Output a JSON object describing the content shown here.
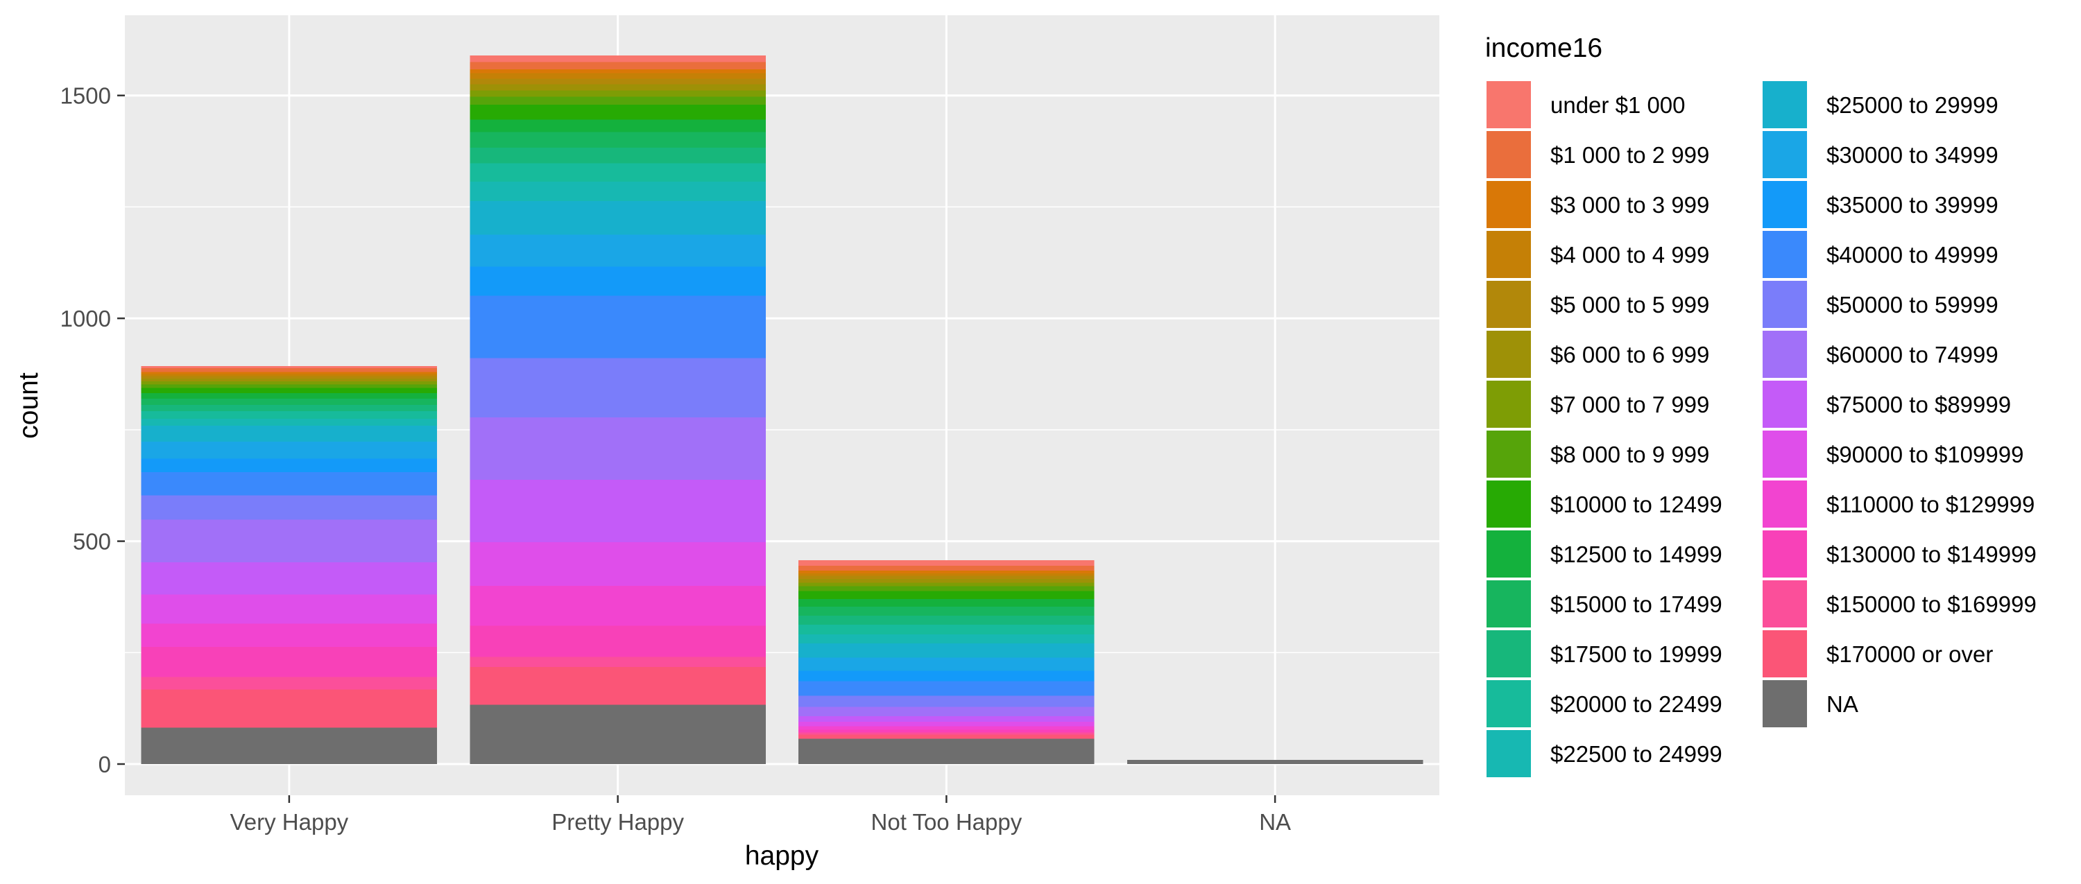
{
  "chart_data": {
    "type": "bar",
    "stacked": true,
    "xlabel": "happy",
    "ylabel": "count",
    "ylim": [
      -70,
      1680
    ],
    "yticks": [
      0,
      500,
      1000,
      1500
    ],
    "categories": [
      "Very Happy",
      "Pretty Happy",
      "Not Too Happy",
      "NA"
    ],
    "legend": {
      "title": "income16",
      "position": "right",
      "entries": [
        {
          "label": "under $1 000",
          "color": "#F8766D"
        },
        {
          "label": "$1 000 to 2 999",
          "color": "#EA6E3C"
        },
        {
          "label": "$3 000 to 3 999",
          "color": "#D97807"
        },
        {
          "label": "$4 000 to 4 999",
          "color": "#C58006"
        },
        {
          "label": "$5 000 to 5 999",
          "color": "#B2880A"
        },
        {
          "label": "$6 000 to 6 999",
          "color": "#9E9107"
        },
        {
          "label": "$7 000 to 7 999",
          "color": "#7E9D05"
        },
        {
          "label": "$8 000 to 9 999",
          "color": "#56A40A"
        },
        {
          "label": "$10000 to 12499",
          "color": "#27AA04"
        },
        {
          "label": "$12500 to 14999",
          "color": "#14B13D"
        },
        {
          "label": "$15000 to 17499",
          "color": "#17B55E"
        },
        {
          "label": "$17500 to 19999",
          "color": "#17B77B"
        },
        {
          "label": "$20000 to 22499",
          "color": "#17BB9B"
        },
        {
          "label": "$22500 to 24999",
          "color": "#17B8B2"
        },
        {
          "label": "$25000 to 29999",
          "color": "#17B0CC"
        },
        {
          "label": "$30000 to 34999",
          "color": "#1AA6E6"
        },
        {
          "label": "$35000 to 39999",
          "color": "#139AF9"
        },
        {
          "label": "$40000 to 49999",
          "color": "#3A89FC"
        },
        {
          "label": "$50000 to 59999",
          "color": "#7A7DFA"
        },
        {
          "label": "$60000 to 74999",
          "color": "#A170F8"
        },
        {
          "label": "$75000 to $89999",
          "color": "#C45BF8"
        },
        {
          "label": "$90000 to $109999",
          "color": "#DF4EEA"
        },
        {
          "label": "$110000 to $129999",
          "color": "#F244D0"
        },
        {
          "label": "$130000 to $149999",
          "color": "#F841B8"
        },
        {
          "label": "$150000 to $169999",
          "color": "#FB4F9A"
        },
        {
          "label": "$170000 or over",
          "color": "#FB5577"
        },
        {
          "label": "NA",
          "color": "#6E6E6E"
        }
      ]
    },
    "series_values": {
      "Very Happy": [
        5,
        8,
        5,
        5,
        5,
        6,
        7,
        8,
        12,
        12,
        14,
        14,
        17,
        16,
        36,
        38,
        30,
        52,
        55,
        95,
        73,
        65,
        52,
        68,
        28,
        85,
        82
      ],
      "Pretty Happy": [
        15,
        16,
        9,
        12,
        13,
        14,
        14,
        18,
        33,
        28,
        35,
        35,
        41,
        44,
        75,
        72,
        65,
        140,
        133,
        140,
        140,
        98,
        90,
        70,
        22,
        85,
        133
      ],
      "Not Too Happy": [
        12,
        11,
        6,
        6,
        7,
        8,
        8,
        11,
        18,
        17,
        20,
        20,
        22,
        20,
        32,
        30,
        23,
        33,
        25,
        21,
        12,
        10,
        8,
        6,
        5,
        9,
        57
      ],
      "NA": [
        0,
        0,
        0,
        0,
        0,
        0,
        0,
        0,
        0,
        0,
        0,
        0,
        0,
        0,
        0,
        0,
        0,
        0,
        0,
        0,
        0,
        0,
        0,
        0,
        0,
        0,
        9
      ]
    }
  }
}
